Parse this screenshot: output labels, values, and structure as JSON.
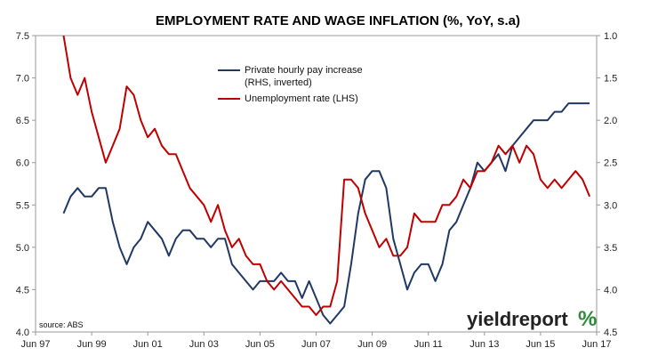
{
  "chart_data": {
    "type": "line",
    "title": "EMPLOYMENT RATE AND WAGE INFLATION (%, YoY, s.a)",
    "x_tick_labels": [
      "Jun 97",
      "Jun 99",
      "Jun 01",
      "Jun 03",
      "Jun 05",
      "Jun 07",
      "Jun 09",
      "Jun 11",
      "Jun 13",
      "Jun 15",
      "Jun 17"
    ],
    "xlim": [
      1997.5,
      2017.5
    ],
    "y_left": {
      "ylim": [
        4.0,
        7.5
      ],
      "ticks": [
        "4.0",
        "4.5",
        "5.0",
        "5.5",
        "6.0",
        "6.5",
        "7.0",
        "7.5"
      ]
    },
    "y_right": {
      "ylim": [
        1.0,
        4.5
      ],
      "inverted": true,
      "ticks": [
        "1.0",
        "1.5",
        "2.0",
        "2.5",
        "3.0",
        "3.5",
        "4.0",
        "4.5"
      ]
    },
    "grid": false,
    "legend_position": "top-center",
    "series": [
      {
        "name": "Private hourly pay increase",
        "name_line2": "(RHS, inverted)",
        "axis": "right",
        "color": "#1f3864",
        "x": [
          1998.5,
          1998.75,
          1999.0,
          1999.25,
          1999.5,
          1999.75,
          2000.0,
          2000.25,
          2000.5,
          2000.75,
          2001.0,
          2001.25,
          2001.5,
          2001.75,
          2002.0,
          2002.25,
          2002.5,
          2002.75,
          2003.0,
          2003.25,
          2003.5,
          2003.75,
          2004.0,
          2004.25,
          2004.5,
          2004.75,
          2005.0,
          2005.25,
          2005.5,
          2005.75,
          2006.0,
          2006.25,
          2006.5,
          2006.75,
          2007.0,
          2007.25,
          2007.5,
          2007.75,
          2008.0,
          2008.25,
          2008.5,
          2008.75,
          2009.0,
          2009.25,
          2009.5,
          2009.75,
          2010.0,
          2010.25,
          2010.5,
          2010.75,
          2011.0,
          2011.25,
          2011.5,
          2011.75,
          2012.0,
          2012.25,
          2012.5,
          2012.75,
          2013.0,
          2013.25,
          2013.5,
          2013.75,
          2014.0,
          2014.25,
          2014.5,
          2014.75,
          2015.0,
          2015.25,
          2015.5,
          2015.75,
          2016.0,
          2016.25,
          2016.5,
          2016.75,
          2017.0,
          2017.25
        ],
        "values": [
          3.1,
          2.9,
          2.8,
          2.9,
          2.9,
          2.8,
          2.8,
          3.2,
          3.5,
          3.7,
          3.5,
          3.4,
          3.2,
          3.3,
          3.4,
          3.6,
          3.4,
          3.3,
          3.3,
          3.4,
          3.4,
          3.5,
          3.4,
          3.4,
          3.7,
          3.8,
          3.9,
          4.0,
          3.9,
          3.9,
          3.9,
          3.8,
          3.9,
          3.9,
          4.1,
          3.9,
          4.1,
          4.3,
          4.4,
          4.3,
          4.2,
          3.7,
          3.1,
          2.7,
          2.6,
          2.6,
          2.8,
          3.4,
          3.7,
          4.0,
          3.8,
          3.7,
          3.7,
          3.9,
          3.7,
          3.3,
          3.2,
          3.0,
          2.8,
          2.5,
          2.6,
          2.5,
          2.4,
          2.6,
          2.3,
          2.2,
          2.1,
          2.0,
          2.0,
          2.0,
          1.9,
          1.9,
          1.8,
          1.8,
          1.8,
          1.8
        ]
      },
      {
        "name": "Unemployment rate (LHS)",
        "axis": "left",
        "color": "#c00000",
        "x": [
          1998.5,
          1998.75,
          1999.0,
          1999.25,
          1999.5,
          1999.75,
          2000.0,
          2000.25,
          2000.5,
          2000.75,
          2001.0,
          2001.25,
          2001.5,
          2001.75,
          2002.0,
          2002.25,
          2002.5,
          2002.75,
          2003.0,
          2003.25,
          2003.5,
          2003.75,
          2004.0,
          2004.25,
          2004.5,
          2004.75,
          2005.0,
          2005.25,
          2005.5,
          2005.75,
          2006.0,
          2006.25,
          2006.5,
          2006.75,
          2007.0,
          2007.25,
          2007.5,
          2007.75,
          2008.0,
          2008.25,
          2008.5,
          2008.75,
          2009.0,
          2009.25,
          2009.5,
          2009.75,
          2010.0,
          2010.25,
          2010.5,
          2010.75,
          2011.0,
          2011.25,
          2011.5,
          2011.75,
          2012.0,
          2012.25,
          2012.5,
          2012.75,
          2013.0,
          2013.25,
          2013.5,
          2013.75,
          2014.0,
          2014.25,
          2014.5,
          2014.75,
          2015.0,
          2015.25,
          2015.5,
          2015.75,
          2016.0,
          2016.25,
          2016.5,
          2016.75,
          2017.0,
          2017.25
        ],
        "values": [
          7.5,
          7.0,
          6.8,
          7.0,
          6.6,
          6.3,
          6.0,
          6.2,
          6.4,
          6.9,
          6.8,
          6.5,
          6.3,
          6.4,
          6.2,
          6.1,
          6.1,
          5.9,
          5.7,
          5.6,
          5.5,
          5.3,
          5.5,
          5.2,
          5.0,
          5.1,
          4.9,
          4.8,
          4.8,
          4.6,
          4.5,
          4.6,
          4.5,
          4.4,
          4.3,
          4.3,
          4.2,
          4.3,
          4.3,
          4.6,
          5.8,
          5.8,
          5.7,
          5.4,
          5.2,
          5.0,
          5.1,
          4.9,
          4.9,
          5.0,
          5.4,
          5.3,
          5.3,
          5.3,
          5.5,
          5.5,
          5.6,
          5.8,
          5.7,
          5.9,
          5.9,
          6.0,
          6.2,
          6.1,
          6.2,
          6.0,
          6.2,
          6.1,
          5.8,
          5.7,
          5.8,
          5.7,
          5.8,
          5.9,
          5.8,
          5.6
        ]
      }
    ]
  },
  "source_text": "source: ABS",
  "logo": {
    "text": "yieldreport",
    "pct": "%",
    "color_text": "#222222",
    "color_green": "#2e8b3a",
    "color_red": "#c00000"
  }
}
